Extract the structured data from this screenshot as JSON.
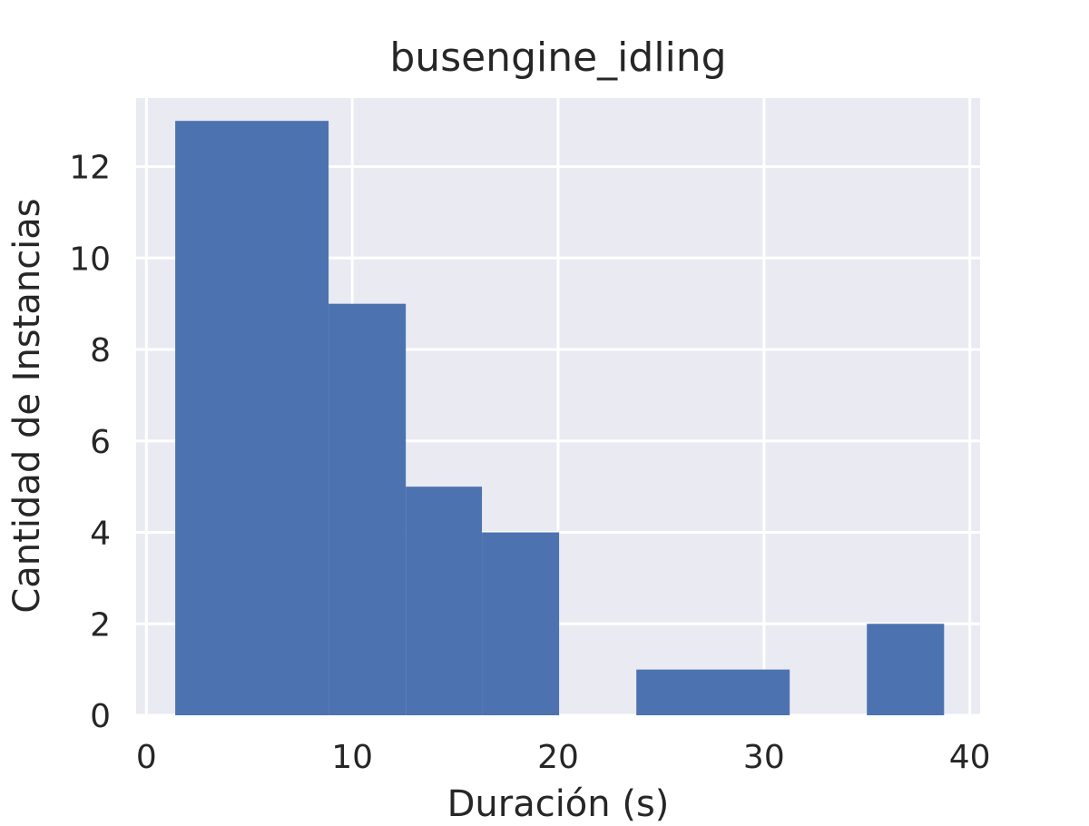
{
  "chart_data": {
    "type": "bar",
    "title": "busengine_idling",
    "xlabel": "Duración (s)",
    "ylabel": "Cantidad de Instancias",
    "xlim": [
      -0.5,
      40.5
    ],
    "ylim": [
      0,
      13.5
    ],
    "xticks": [
      0,
      10,
      20,
      30,
      40
    ],
    "yticks": [
      0,
      2,
      4,
      6,
      8,
      10,
      12
    ],
    "grid": true,
    "colors": {
      "background": "#eaeaf2",
      "grid": "#ffffff",
      "bar": "#4c72b0",
      "text": "#262626"
    },
    "bins": [
      {
        "x0": 1.4,
        "x1": 8.85,
        "count": 13
      },
      {
        "x0": 8.85,
        "x1": 12.6,
        "count": 9
      },
      {
        "x0": 12.6,
        "x1": 16.3,
        "count": 5
      },
      {
        "x0": 16.3,
        "x1": 20.05,
        "count": 4
      },
      {
        "x0": 23.8,
        "x1": 31.25,
        "count": 1
      },
      {
        "x0": 35.0,
        "x1": 38.75,
        "count": 2
      }
    ]
  }
}
